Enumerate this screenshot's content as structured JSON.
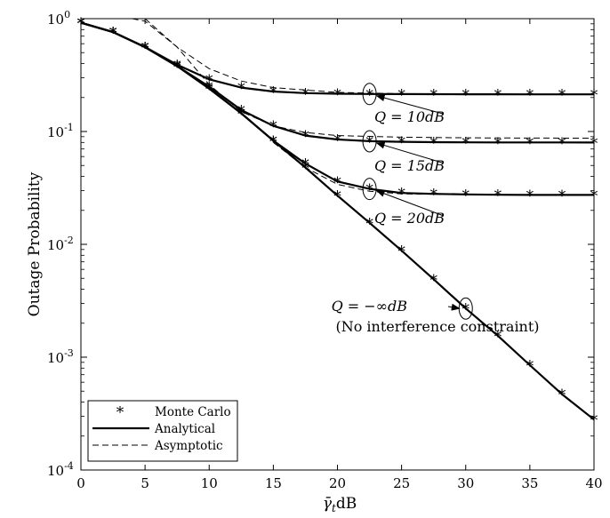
{
  "chart_data": {
    "type": "line",
    "ylabel": "Outage Probability",
    "xlabel": "γ̄tdB",
    "xlim": [
      0,
      40
    ],
    "ylim": [
      0.0001,
      1
    ],
    "yscale": "log",
    "grid": false,
    "legend_position": "bottom-left",
    "x_ticks": [
      0,
      5,
      10,
      15,
      20,
      25,
      30,
      35,
      40
    ],
    "y_ticks": [
      {
        "value": 1,
        "base": "10",
        "exp": "0"
      },
      {
        "value": 0.1,
        "base": "10",
        "exp": "-1"
      },
      {
        "value": 0.01,
        "base": "10",
        "exp": "-2"
      },
      {
        "value": 0.001,
        "base": "10",
        "exp": "-3"
      },
      {
        "value": 0.0001,
        "base": "10",
        "exp": "-4"
      }
    ],
    "legend": [
      {
        "label": "Monte Carlo",
        "style": "marker"
      },
      {
        "label": "Analytical",
        "style": "solid"
      },
      {
        "label": "Asymptotic",
        "style": "dashed"
      }
    ],
    "x": [
      0,
      2.5,
      5,
      7.5,
      10,
      12.5,
      15,
      17.5,
      20,
      22.5,
      25,
      27.5,
      30,
      32.5,
      35,
      37.5,
      40
    ],
    "series": [
      {
        "curve": "Q = 10dB",
        "analytical": [
          0.92,
          0.76,
          0.56,
          0.39,
          0.29,
          0.245,
          0.226,
          0.219,
          0.216,
          0.215,
          0.2145,
          0.214,
          0.2138,
          0.2136,
          0.2135,
          0.2134,
          0.2134
        ],
        "monte_carlo": [
          0.92,
          0.76,
          0.56,
          0.39,
          0.29,
          0.245,
          0.226,
          0.219,
          0.216,
          0.215,
          0.2145,
          0.214,
          0.2138,
          0.2136,
          0.2135,
          0.2134,
          0.2134
        ],
        "asymptotic": {
          "x": [
            4,
            5,
            7.5,
            10,
            12.5,
            15,
            20,
            25,
            30,
            35,
            40
          ],
          "y": [
            1.0,
            0.95,
            0.56,
            0.36,
            0.28,
            0.245,
            0.222,
            0.216,
            0.2145,
            0.214,
            0.2134
          ]
        }
      },
      {
        "curve": "Q = 15dB",
        "analytical": [
          0.92,
          0.76,
          0.56,
          0.38,
          0.25,
          0.155,
          0.112,
          0.092,
          0.085,
          0.082,
          0.081,
          0.0805,
          0.0802,
          0.08,
          0.08,
          0.08,
          0.0799
        ],
        "monte_carlo": [
          0.92,
          0.76,
          0.56,
          0.38,
          0.25,
          0.155,
          0.112,
          0.092,
          0.085,
          0.082,
          0.081,
          0.0805,
          0.0802,
          0.08,
          0.08,
          0.08,
          0.0799
        ],
        "asymptotic": {
          "x": [
            5,
            7.5,
            10,
            12.5,
            15,
            17.5,
            20,
            25,
            30,
            35,
            40
          ],
          "y": [
            1.0,
            0.56,
            0.26,
            0.15,
            0.112,
            0.098,
            0.092,
            0.089,
            0.088,
            0.0875,
            0.0873
          ]
        }
      },
      {
        "curve": "Q = 20dB",
        "analytical": [
          0.92,
          0.76,
          0.56,
          0.38,
          0.24,
          0.145,
          0.083,
          0.052,
          0.036,
          0.031,
          0.0285,
          0.028,
          0.0277,
          0.0275,
          0.0274,
          0.0274,
          0.0274
        ],
        "monte_carlo": [
          0.92,
          0.76,
          0.56,
          0.38,
          0.24,
          0.145,
          0.083,
          0.052,
          0.036,
          0.031,
          0.0285,
          0.028,
          0.0277,
          0.0275,
          0.0274,
          0.0274,
          0.0274
        ],
        "asymptotic": {
          "x": [
            15,
            17.5,
            20,
            22.5,
            25,
            30,
            35,
            40
          ],
          "y": [
            0.08,
            0.048,
            0.034,
            0.0295,
            0.028,
            0.0276,
            0.0275,
            0.0274
          ]
        }
      },
      {
        "curve": "Q = -∞dB",
        "analytical": [
          0.92,
          0.76,
          0.56,
          0.38,
          0.24,
          0.145,
          0.083,
          0.048,
          0.027,
          0.0155,
          0.0088,
          0.0049,
          0.0027,
          0.00155,
          0.00085,
          0.00047,
          0.00028
        ],
        "monte_carlo": [
          0.92,
          0.76,
          0.56,
          0.38,
          0.24,
          0.145,
          0.083,
          0.048,
          0.027,
          0.0155,
          0.0088,
          0.0049,
          0.0027,
          0.00155,
          0.00085,
          0.00047,
          0.00028
        ]
      }
    ],
    "annotations": [
      {
        "lines": [
          "Q = 10dB"
        ],
        "target_x": 22.5,
        "target_y": 0.215
      },
      {
        "lines": [
          "Q = 15dB"
        ],
        "target_x": 22.5,
        "target_y": 0.082
      },
      {
        "lines": [
          "Q = 20dB"
        ],
        "target_x": 22.5,
        "target_y": 0.031
      },
      {
        "lines": [
          "Q = −∞dB",
          "(No interference constraint)"
        ],
        "target_x": 30,
        "target_y": 0.0027
      }
    ]
  }
}
